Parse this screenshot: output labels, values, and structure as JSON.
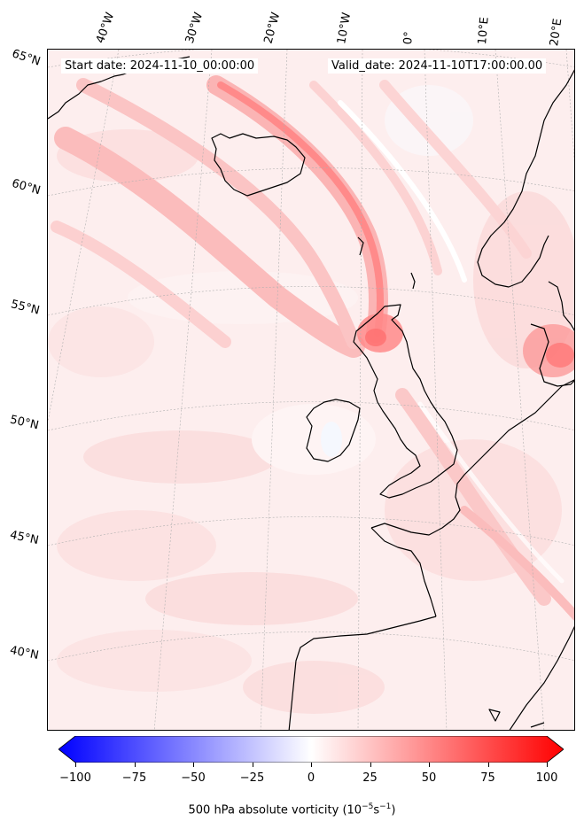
{
  "header": {
    "start_date": "Start date: 2024-11-10_00:00:00",
    "valid_date": "Valid_date: 2024-11-10T17:00:00.00"
  },
  "longitude_labels": [
    "40°W",
    "30°W",
    "20°W",
    "10°W",
    "0°",
    "10°E",
    "20°E"
  ],
  "latitude_labels": [
    "65°N",
    "60°N",
    "55°N",
    "50°N",
    "45°N",
    "40°N"
  ],
  "colorbar": {
    "ticks": [
      "−100",
      "−75",
      "−50",
      "−25",
      "0",
      "25",
      "50",
      "75",
      "100"
    ],
    "label_main": "500 hPa absolute vorticity (10",
    "label_exp1": "−5",
    "label_mid": "s",
    "label_exp2": "−1",
    "label_end": ")",
    "min": -100,
    "max": 100,
    "colors": {
      "negative": "#0000ff",
      "zero": "#ffffff",
      "positive": "#ff0000"
    }
  },
  "field_colors": {
    "background": "#fdeeee",
    "band_strong": "#ff8a8a",
    "band_medium": "#fbbcbc",
    "band_light": "#fcd8d8",
    "coast": "#000000",
    "grid": "#b0b0b0"
  }
}
